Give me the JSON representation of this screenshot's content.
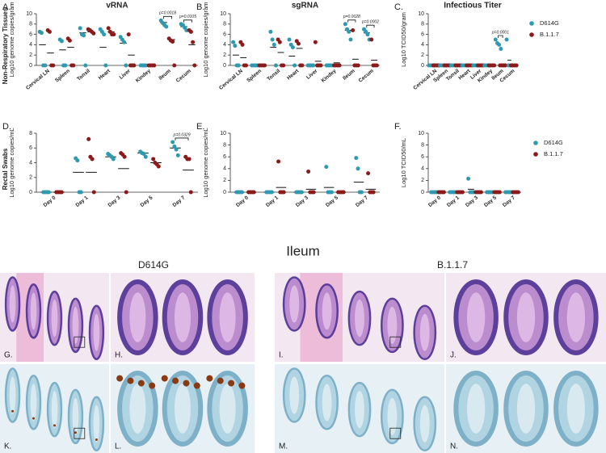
{
  "chart_data": [
    {
      "type": "dot",
      "panel": "A.",
      "title": "vRNA",
      "ylabel": "Log10 genome copies/gram",
      "row_label": "Non-Respiratory Tissues",
      "categories": [
        "Cervical LN",
        "Spleen",
        "Tonsil",
        "Heart",
        "Liver",
        "Kindey",
        "Ileum",
        "Cecum"
      ],
      "ylim": [
        0,
        10
      ],
      "yticks": [
        0,
        2,
        4,
        6,
        8,
        10
      ],
      "series": [
        {
          "color": "#2e9ab0",
          "values": [
            [
              6.5,
              6.3,
              0,
              0
            ],
            [
              5.0,
              4.7,
              0,
              0
            ],
            [
              7.2,
              6.0,
              5.8,
              0
            ],
            [
              7.0,
              6.5,
              6.0,
              0
            ],
            [
              5.5,
              5.0,
              4.5,
              0
            ],
            [
              0,
              0,
              0,
              0
            ],
            [
              8.7,
              8.2,
              7.8,
              7.5
            ],
            [
              8.0,
              7.8,
              7.3,
              6.8
            ]
          ],
          "means": [
            4,
            3,
            6.3,
            3.5,
            4.3,
            0,
            8.3,
            7.5
          ]
        },
        {
          "color": "#8b1a1a",
          "values": [
            [
              6.8,
              6.5,
              0,
              0
            ],
            [
              5.2,
              4.8,
              0,
              0
            ],
            [
              7.0,
              6.8,
              6.5,
              6.2
            ],
            [
              7.2,
              6.5,
              6.0,
              6.0
            ],
            [
              6.0,
              0,
              0,
              0
            ],
            [
              0,
              0,
              0,
              0
            ],
            [
              5.2,
              4.8,
              4.6,
              0
            ],
            [
              6.8,
              6.5,
              4.5,
              0
            ]
          ],
          "means": [
            2.4,
            3.5,
            6.5,
            6.5,
            2,
            0,
            5,
            4
          ]
        }
      ],
      "p_values": [
        null,
        null,
        null,
        null,
        null,
        null,
        "p=0.0018",
        "p=0.0105"
      ]
    },
    {
      "type": "dot",
      "panel": "B.",
      "title": "sgRNA",
      "ylabel": "Log10 genome copies/gram",
      "categories": [
        "Cervical LN",
        "Spleen",
        "Tonsil",
        "Heart",
        "Liver",
        "Kindey",
        "Ileum",
        "Cecum"
      ],
      "ylim": [
        0,
        10
      ],
      "yticks": [
        0,
        2,
        4,
        6,
        8,
        10
      ],
      "series": [
        {
          "color": "#2e9ab0",
          "values": [
            [
              4.5,
              3.8,
              0,
              0
            ],
            [
              0,
              0,
              0,
              0
            ],
            [
              6.5,
              5.0,
              4.0,
              0
            ],
            [
              5.0,
              4.0,
              3.5,
              0
            ],
            [
              0,
              0,
              0,
              0
            ],
            [
              0,
              0,
              0,
              0
            ],
            [
              8.0,
              7.0,
              6.5,
              5.0
            ],
            [
              7.0,
              6.5,
              6.0,
              5.0
            ]
          ],
          "means": [
            2,
            0,
            3.5,
            1.8,
            0,
            0,
            6.8,
            6.3
          ]
        },
        {
          "color": "#8b1a1a",
          "values": [
            [
              4.5,
              4.0,
              0,
              0
            ],
            [
              0,
              0,
              0,
              0
            ],
            [
              5.0,
              4.5,
              0,
              0
            ],
            [
              4.7,
              4.2,
              0,
              0
            ],
            [
              4.5,
              0,
              0,
              0
            ],
            [
              0,
              0,
              0,
              0
            ],
            [
              6.8,
              0,
              0,
              0
            ],
            [
              5.0,
              0,
              0,
              0
            ]
          ],
          "means": [
            1.5,
            0,
            2.5,
            3.3,
            0.8,
            0.5,
            1.2,
            1
          ]
        }
      ],
      "p_values": [
        null,
        null,
        null,
        null,
        null,
        null,
        "p=0.0028",
        "p=0.0002"
      ]
    },
    {
      "type": "dot",
      "panel": "C.",
      "title": "Infectious Titer",
      "ylabel": "Log10 TCID50/gram",
      "legend": true,
      "categories": [
        "Cervical LN",
        "Spleen",
        "Tonsil",
        "Heart",
        "Liver",
        "Kindey",
        "Ileum",
        "Cecum"
      ],
      "ylim": [
        0,
        10
      ],
      "yticks": [
        0,
        2,
        4,
        6,
        8,
        10
      ],
      "series": [
        {
          "name": "D614G",
          "color": "#2e9ab0",
          "values": [
            [
              0,
              0,
              0,
              0
            ],
            [
              0,
              0,
              0,
              0
            ],
            [
              0,
              0,
              0,
              0
            ],
            [
              0,
              0,
              0,
              0
            ],
            [
              0,
              0,
              0,
              0
            ],
            [
              0,
              0,
              0,
              0
            ],
            [
              5.0,
              4.3,
              4.0,
              3.2
            ],
            [
              5.0,
              0,
              0,
              0
            ]
          ],
          "means": [
            0,
            0,
            0,
            0,
            0,
            0,
            4.2,
            1
          ]
        },
        {
          "name": "B.1.1.7",
          "color": "#8b1a1a",
          "values": [
            [
              0,
              0,
              0,
              0
            ],
            [
              0,
              0,
              0,
              0
            ],
            [
              0,
              0,
              0,
              0
            ],
            [
              0,
              0,
              0,
              0
            ],
            [
              0,
              0,
              0,
              0
            ],
            [
              0,
              0,
              0,
              0
            ],
            [
              0,
              0,
              0,
              0
            ],
            [
              0,
              0,
              0,
              0
            ]
          ],
          "means": [
            0,
            0,
            0,
            0,
            0,
            0,
            0,
            0
          ]
        }
      ],
      "p_values": [
        null,
        null,
        null,
        null,
        null,
        null,
        "p=0.0001",
        null
      ]
    },
    {
      "type": "dot",
      "panel": "D.",
      "ylabel": "Log10 genome copies/mL",
      "row_label": "Rectal  Swabs",
      "categories": [
        "Day 0",
        "Day 1",
        "Day 3",
        "Day 5",
        "Day 7"
      ],
      "ylim": [
        0,
        8
      ],
      "yticks": [
        0,
        2,
        4,
        6,
        8
      ],
      "series": [
        {
          "color": "#2e9ab0",
          "values": [
            [
              0,
              0,
              0,
              0
            ],
            [
              4.6,
              4.3,
              0,
              0
            ],
            [
              5.2,
              5.0,
              4.8,
              4.5
            ],
            [
              5.5,
              5.3,
              5.2,
              4.8
            ],
            [
              6.8,
              6.2,
              5.8,
              5.0
            ]
          ],
          "means": [
            0,
            2.7,
            4.8,
            5.3,
            6
          ]
        },
        {
          "color": "#8b1a1a",
          "values": [
            [
              0,
              0,
              0,
              0
            ],
            [
              7.2,
              4.8,
              4.5,
              0
            ],
            [
              5.3,
              5.1,
              4.8,
              0
            ],
            [
              4.5,
              4.0,
              3.8,
              3.5
            ],
            [
              4.8,
              4.5,
              4.5,
              0
            ]
          ],
          "means": [
            0,
            2.7,
            3.2,
            4,
            3
          ]
        }
      ],
      "p_values": [
        null,
        null,
        null,
        null,
        "p=0.0329"
      ]
    },
    {
      "type": "dot",
      "panel": "E.",
      "ylabel": "Log10 genome copies/mL",
      "categories": [
        "Day 0",
        "Day 1",
        "Day 3",
        "Day 5",
        "Day 7"
      ],
      "ylim": [
        0,
        10
      ],
      "yticks": [
        0,
        2,
        4,
        6,
        8,
        10
      ],
      "series": [
        {
          "color": "#2e9ab0",
          "values": [
            [
              0,
              0,
              0,
              0
            ],
            [
              0,
              0,
              0,
              0
            ],
            [
              0,
              0,
              0,
              0
            ],
            [
              4.3,
              0,
              0,
              0
            ],
            [
              5.8,
              4.0,
              0,
              0
            ]
          ],
          "means": [
            0,
            0,
            0,
            0.8,
            1.7
          ]
        },
        {
          "color": "#8b1a1a",
          "values": [
            [
              0,
              0,
              0,
              0
            ],
            [
              5.2,
              0,
              0,
              0
            ],
            [
              3.5,
              0,
              0,
              0
            ],
            [
              0,
              0,
              0,
              0
            ],
            [
              3.2,
              0,
              0,
              0
            ]
          ],
          "means": [
            0,
            0.8,
            0.5,
            0,
            0.5
          ]
        }
      ]
    },
    {
      "type": "dot",
      "panel": "F.",
      "ylabel": "Log10 TCID50/mL",
      "legend": true,
      "categories": [
        "Day 0",
        "Day 1",
        "Day 3",
        "Day 5",
        "Day 7"
      ],
      "ylim": [
        0,
        10
      ],
      "yticks": [
        0,
        2,
        4,
        6,
        8,
        10
      ],
      "series": [
        {
          "name": "D614G",
          "color": "#2e9ab0",
          "values": [
            [
              0,
              0,
              0,
              0
            ],
            [
              0,
              0,
              0,
              0
            ],
            [
              2.3,
              0,
              0,
              0
            ],
            [
              0,
              0,
              0,
              0
            ],
            [
              0,
              0,
              0,
              0
            ]
          ],
          "means": [
            0,
            0,
            0.5,
            0,
            0
          ]
        },
        {
          "name": "B.1.1.7",
          "color": "#8b1a1a",
          "values": [
            [
              0,
              0,
              0,
              0
            ],
            [
              0,
              0,
              0,
              0
            ],
            [
              0,
              0,
              0,
              0
            ],
            [
              0,
              0,
              0,
              0
            ],
            [
              0,
              0,
              0,
              0
            ]
          ],
          "means": [
            0,
            0,
            0,
            0,
            0
          ]
        }
      ]
    }
  ],
  "figure": {
    "title": "Ileum",
    "groups": [
      "D614G",
      "B.1.1.7"
    ],
    "panels": [
      "G.",
      "H.",
      "I.",
      "J.",
      "K.",
      "L.",
      "M.",
      "N."
    ]
  }
}
